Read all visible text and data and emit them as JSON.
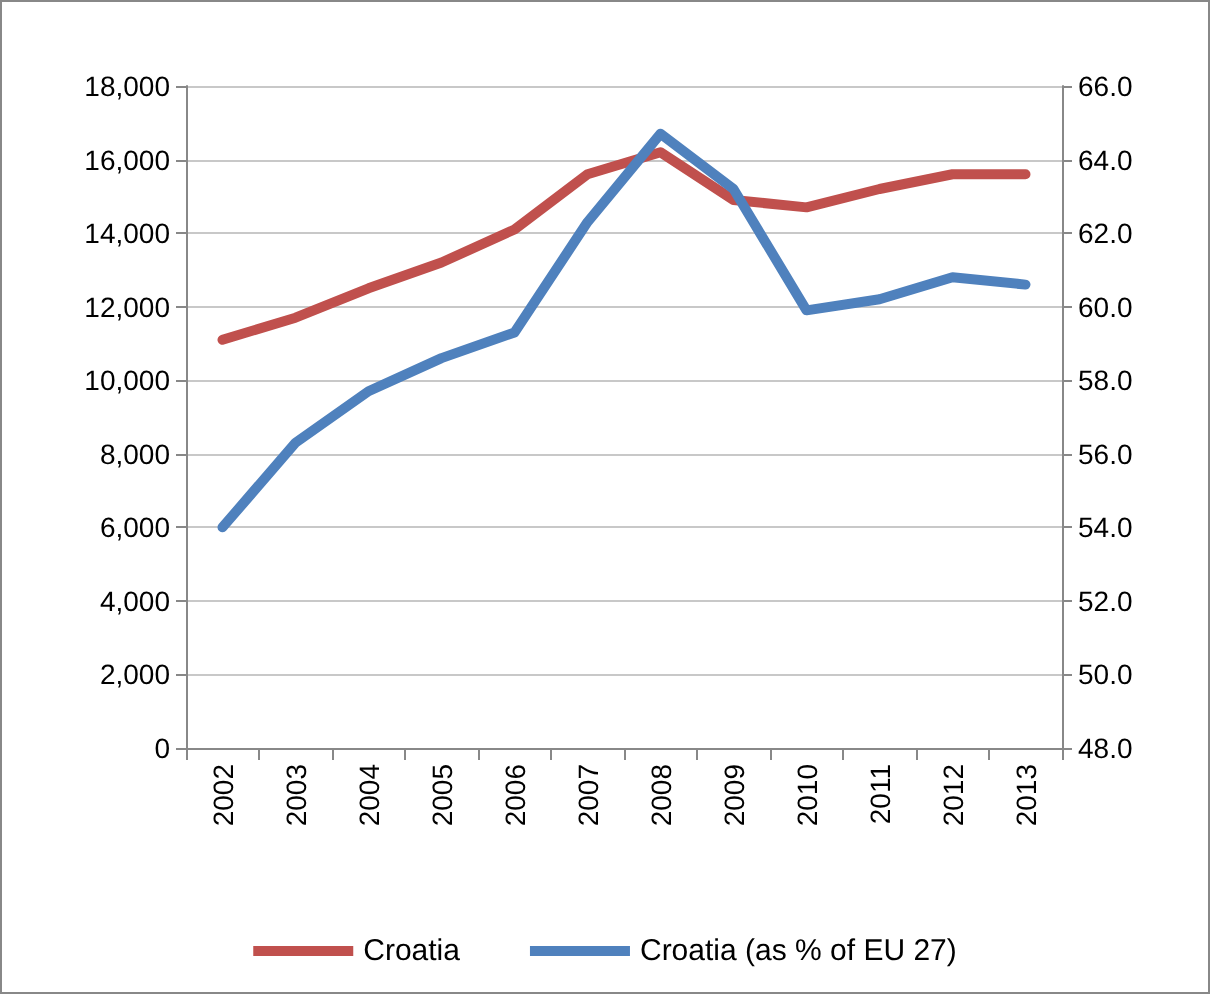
{
  "chart_data": {
    "type": "line",
    "categories": [
      "2002",
      "2003",
      "2004",
      "2005",
      "2006",
      "2007",
      "2008",
      "2009",
      "2010",
      "2011",
      "2012",
      "2013"
    ],
    "series": [
      {
        "name": "Croatia",
        "color": "#c0504d",
        "values": [
          11100,
          11700,
          12500,
          13200,
          14100,
          15600,
          16200,
          14900,
          14700,
          15200,
          15600,
          15600
        ]
      },
      {
        "name": "Croatia (as % of EU 27)",
        "color": "#4f81bd",
        "axis": "y2",
        "values": [
          54.0,
          56.3,
          57.7,
          58.6,
          59.3,
          62.3,
          64.7,
          63.2,
          59.9,
          60.2,
          60.8,
          60.6
        ]
      }
    ],
    "ylim": [
      0,
      18000
    ],
    "yticks": [
      0,
      {
        "value": 2000,
        "label": "2,000"
      },
      {
        "value": 4000,
        "label": "4,000"
      },
      {
        "value": 6000,
        "label": "6,000"
      },
      {
        "value": 8000,
        "label": "8,000"
      },
      {
        "value": 10000,
        "label": "10,000"
      },
      {
        "value": 12000,
        "label": "12,000"
      },
      {
        "value": 14000,
        "label": "14,000"
      },
      {
        "value": 16000,
        "label": "16,000"
      },
      {
        "value": 18000,
        "label": "18,000"
      }
    ],
    "y2lim": [
      48,
      66
    ],
    "y2ticks": [
      {
        "value": 48,
        "label": "48.0"
      },
      {
        "value": 50,
        "label": "50.0"
      },
      {
        "value": 52,
        "label": "52.0"
      },
      {
        "value": 54,
        "label": "54.0"
      },
      {
        "value": 56,
        "label": "56.0"
      },
      {
        "value": 58,
        "label": "58.0"
      },
      {
        "value": 60,
        "label": "60.0"
      },
      {
        "value": 62,
        "label": "62.0"
      },
      {
        "value": 64,
        "label": "64.0"
      },
      {
        "value": 66,
        "label": "66.0"
      }
    ],
    "grid": "y",
    "legend": "bottom",
    "marker": "none",
    "line_style": "solid"
  }
}
